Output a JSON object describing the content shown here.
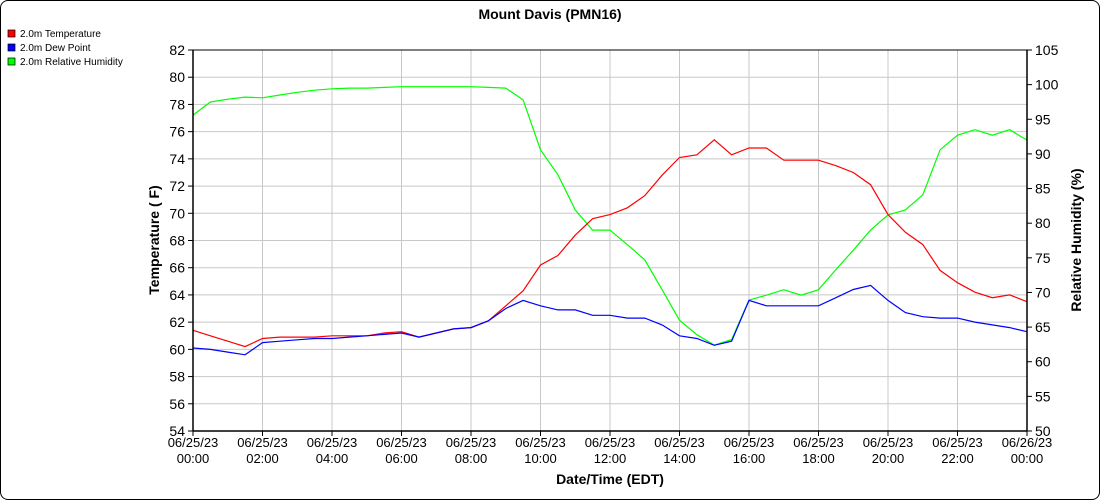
{
  "chart_data": {
    "type": "line",
    "title": "Mount Davis (PMN16)",
    "xlabel": "Date/Time (EDT)",
    "ylabel": "Temperature ( F)",
    "y2label": "Relative Humidity (%)",
    "ylim": [
      54,
      82
    ],
    "y2lim": [
      50,
      105
    ],
    "yticks": [
      "54",
      "56",
      "58",
      "60",
      "62",
      "64",
      "66",
      "68",
      "70",
      "72",
      "74",
      "76",
      "78",
      "80",
      "82"
    ],
    "y2ticks": [
      "50",
      "55",
      "60",
      "65",
      "70",
      "75",
      "80",
      "85",
      "90",
      "95",
      "100",
      "105"
    ],
    "xticks": [
      [
        "06/25/23",
        "00:00"
      ],
      [
        "06/25/23",
        "02:00"
      ],
      [
        "06/25/23",
        "04:00"
      ],
      [
        "06/25/23",
        "06:00"
      ],
      [
        "06/25/23",
        "08:00"
      ],
      [
        "06/25/23",
        "10:00"
      ],
      [
        "06/25/23",
        "12:00"
      ],
      [
        "06/25/23",
        "14:00"
      ],
      [
        "06/25/23",
        "16:00"
      ],
      [
        "06/25/23",
        "18:00"
      ],
      [
        "06/25/23",
        "20:00"
      ],
      [
        "06/25/23",
        "22:00"
      ],
      [
        "06/26/23",
        "00:00"
      ]
    ],
    "xrange": [
      "2023-06-25 00:00",
      "2023-06-26 00:00"
    ],
    "grid": true,
    "legend": "top-left",
    "x": [
      "2023-06-25 00:00",
      "2023-06-25 00:30",
      "2023-06-25 01:00",
      "2023-06-25 01:30",
      "2023-06-25 02:00",
      "2023-06-25 02:30",
      "2023-06-25 03:00",
      "2023-06-25 03:30",
      "2023-06-25 04:00",
      "2023-06-25 04:30",
      "2023-06-25 05:00",
      "2023-06-25 05:30",
      "2023-06-25 06:00",
      "2023-06-25 06:30",
      "2023-06-25 07:00",
      "2023-06-25 07:30",
      "2023-06-25 08:00",
      "2023-06-25 08:30",
      "2023-06-25 09:00",
      "2023-06-25 09:30",
      "2023-06-25 10:00",
      "2023-06-25 10:30",
      "2023-06-25 11:00",
      "2023-06-25 11:30",
      "2023-06-25 12:00",
      "2023-06-25 12:30",
      "2023-06-25 13:00",
      "2023-06-25 13:30",
      "2023-06-25 14:00",
      "2023-06-25 14:30",
      "2023-06-25 15:00",
      "2023-06-25 15:30",
      "2023-06-25 16:00",
      "2023-06-25 16:30",
      "2023-06-25 17:00",
      "2023-06-25 17:30",
      "2023-06-25 18:00",
      "2023-06-25 18:30",
      "2023-06-25 19:00",
      "2023-06-25 19:30",
      "2023-06-25 20:00",
      "2023-06-25 20:30",
      "2023-06-25 21:00",
      "2023-06-25 21:30",
      "2023-06-25 22:00",
      "2023-06-25 22:30",
      "2023-06-25 23:00",
      "2023-06-25 23:30",
      "2023-06-26 00:00"
    ],
    "series": [
      {
        "name": "2.0m Temperature",
        "color": "#ff0000",
        "axis": "left",
        "values": [
          61.4,
          61.0,
          60.6,
          60.2,
          60.8,
          60.9,
          60.9,
          60.9,
          61.0,
          61.0,
          61.0,
          61.2,
          61.3,
          60.9,
          61.2,
          61.5,
          61.6,
          62.1,
          63.2,
          64.3,
          66.2,
          66.9,
          68.4,
          69.6,
          69.9,
          70.4,
          71.3,
          72.8,
          74.1,
          74.3,
          75.4,
          74.3,
          74.8,
          74.8,
          73.9,
          73.9,
          73.9,
          73.5,
          73.0,
          72.1,
          69.9,
          68.6,
          67.7,
          65.8,
          64.9,
          64.2,
          63.8,
          64.0,
          63.5
        ]
      },
      {
        "name": "2.0m Dew Point",
        "color": "#0000ff",
        "axis": "left",
        "values": [
          60.1,
          60.0,
          59.8,
          59.6,
          60.5,
          60.6,
          60.7,
          60.8,
          60.8,
          60.9,
          61.0,
          61.1,
          61.2,
          60.9,
          61.2,
          61.5,
          61.6,
          62.1,
          63.0,
          63.6,
          63.2,
          62.9,
          62.9,
          62.5,
          62.5,
          62.3,
          62.3,
          61.8,
          61.0,
          60.8,
          60.3,
          60.6,
          63.6,
          63.2,
          63.2,
          63.2,
          63.2,
          63.8,
          64.4,
          64.7,
          63.6,
          62.7,
          62.4,
          62.3,
          62.3,
          62.0,
          61.8,
          61.6,
          61.3
        ]
      },
      {
        "name": "2.0m Relative Humidity",
        "color": "#00ff00",
        "axis": "right",
        "values": [
          95.6,
          97.5,
          97.9,
          98.2,
          98.1,
          98.5,
          98.9,
          99.2,
          99.4,
          99.5,
          99.5,
          99.6,
          99.7,
          99.7,
          99.7,
          99.7,
          99.7,
          99.6,
          99.5,
          97.8,
          90.6,
          87.0,
          81.9,
          79.0,
          79.0,
          76.9,
          74.7,
          70.4,
          66.0,
          63.9,
          62.4,
          63.2,
          68.9,
          69.6,
          70.4,
          69.6,
          70.4,
          73.3,
          76.1,
          79.0,
          81.2,
          81.9,
          84.1,
          90.6,
          92.7,
          93.5,
          92.7,
          93.5,
          92.0
        ]
      }
    ]
  }
}
